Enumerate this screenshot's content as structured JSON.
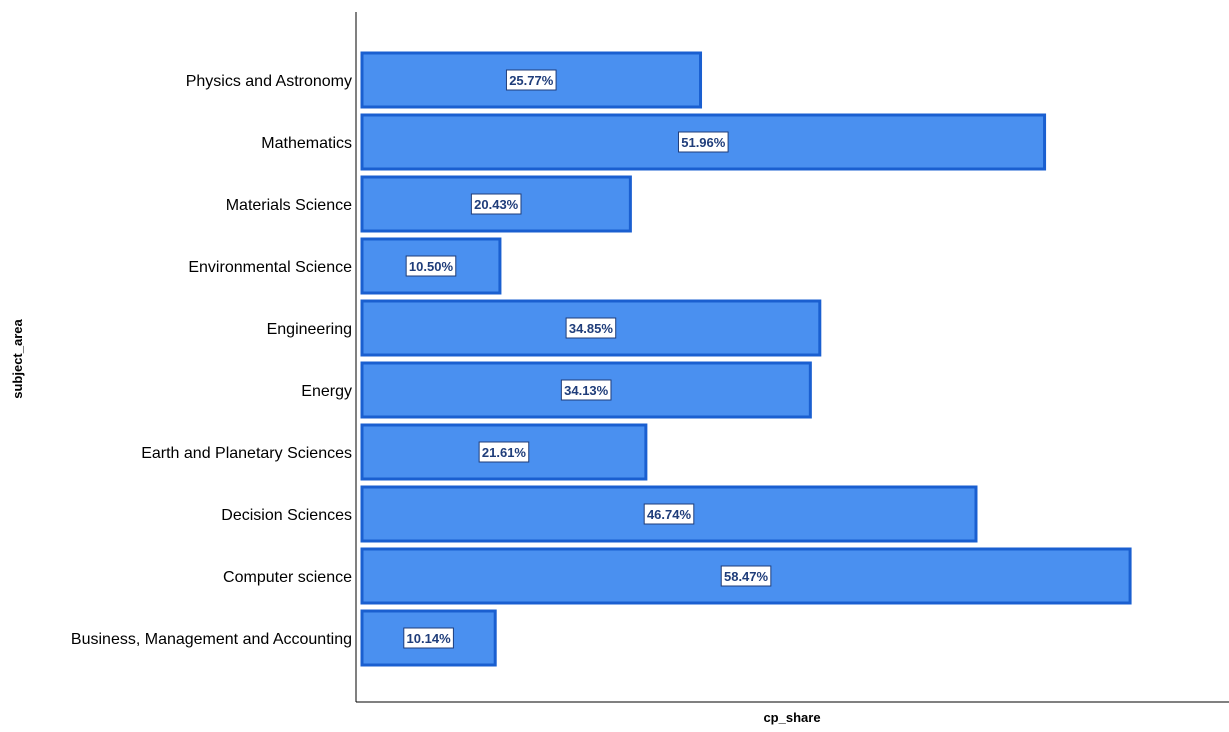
{
  "chart_data": {
    "type": "bar",
    "orientation": "horizontal",
    "categories": [
      "Physics and Astronomy",
      "Mathematics",
      "Materials Science",
      "Environmental Science",
      "Engineering",
      "Energy",
      "Earth and Planetary Sciences",
      "Decision Sciences",
      "Computer science",
      "Business, Management and Accounting"
    ],
    "values": [
      25.77,
      51.96,
      20.43,
      10.5,
      34.85,
      34.13,
      21.61,
      46.74,
      58.47,
      10.14
    ],
    "value_labels": [
      "25.77%",
      "51.96%",
      "20.43%",
      "10.50%",
      "34.85%",
      "34.13%",
      "21.61%",
      "46.74%",
      "58.47%",
      "10.14%"
    ],
    "xlabel": "cp_share",
    "ylabel": "subject_area",
    "xlim": [
      0,
      66
    ],
    "grid": false,
    "legend": "none",
    "colors": {
      "bar_fill": "#4a90f0",
      "bar_stroke": "#1a5fd0",
      "label_text": "#1f3d7a",
      "axis": "#000000"
    }
  }
}
